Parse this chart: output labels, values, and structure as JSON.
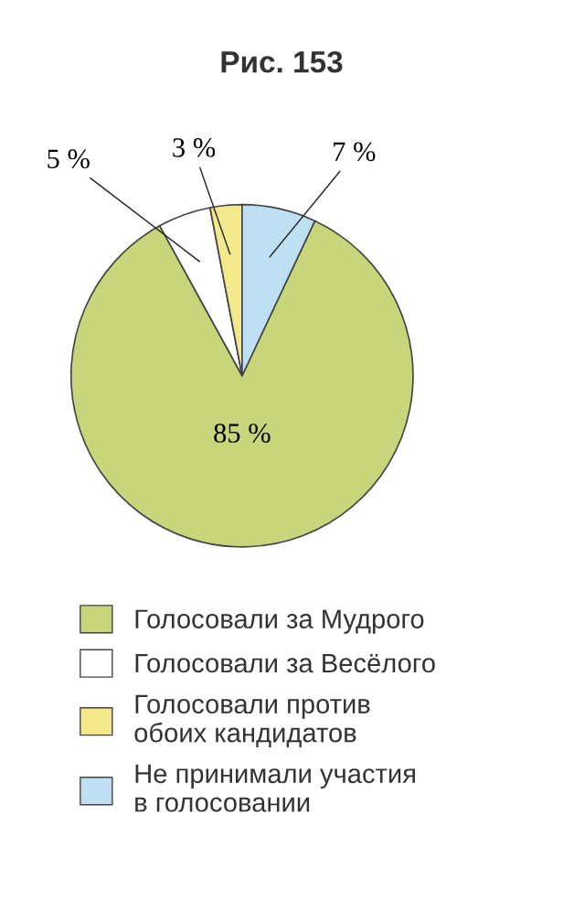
{
  "chart_data": {
    "type": "pie",
    "title": "Рис. 153",
    "categories": [
      "Голосовали за Мудрого",
      "Голосовали за Весёлого",
      "Голосовали против\nобоих кандидатов",
      "Не принимали участия\nв голосовании"
    ],
    "values": [
      85,
      5,
      3,
      7
    ],
    "colors": [
      "#c9d57a",
      "#ffffff",
      "#f3e98a",
      "#bfe0f2"
    ],
    "value_labels": [
      "85 %",
      "5 %",
      "3 %",
      "7 %"
    ],
    "legend": "bottom"
  }
}
